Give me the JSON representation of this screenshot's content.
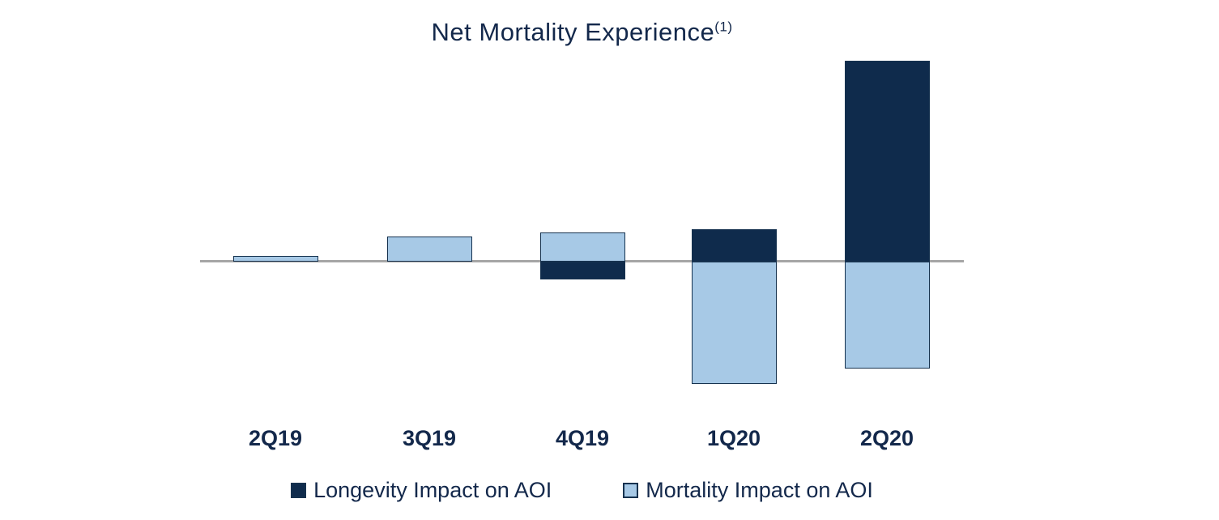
{
  "title": "Net Mortality Experience",
  "title_superscript": "(1)",
  "colors": {
    "longevity_navy": "#0f2b4c",
    "mortality_light_blue": "#a7c9e6",
    "bar_border_navy": "#16324f",
    "axis_line_gray": "#a6a6a6",
    "text_navy": "#13284b"
  },
  "legend": {
    "items": [
      {
        "label": "Longevity Impact on AOI",
        "series": "longevity"
      },
      {
        "label": "Mortality Impact on AOI",
        "series": "mortality"
      }
    ]
  },
  "chart_data": {
    "type": "bar",
    "subtype": "stacked",
    "title": "Net Mortality Experience(1)",
    "categories": [
      "2Q19",
      "3Q19",
      "4Q19",
      "1Q20",
      "2Q20"
    ],
    "series": [
      {
        "name": "Longevity Impact on AOI",
        "key": "longevity",
        "values": [
          0,
          0,
          -22,
          40,
          248
        ]
      },
      {
        "name": "Mortality Impact on AOI",
        "key": "mortality",
        "values": [
          7,
          31,
          36,
          -151,
          -132
        ]
      }
    ],
    "xlabel": "",
    "ylabel": "",
    "units": "relative (value axis unlabeled)",
    "value_axis_visible": false,
    "ylim": [
      -200,
      260
    ],
    "gridlines": false,
    "zero_baseline": true,
    "legend_position": "bottom"
  }
}
